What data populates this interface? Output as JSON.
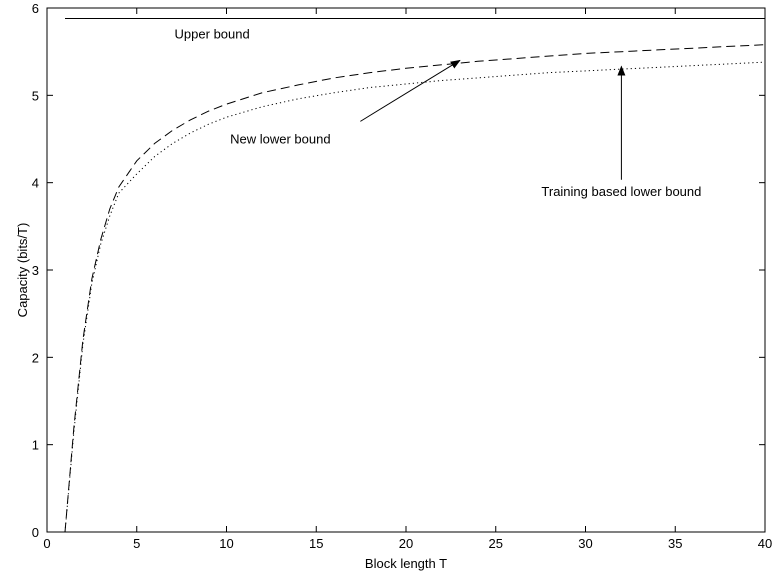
{
  "chart_data": {
    "type": "line",
    "xlabel": "Block length T",
    "ylabel": "Capacity (bits/T)",
    "xlim": [
      0,
      40
    ],
    "ylim": [
      0,
      6
    ],
    "xticks": [
      0,
      5,
      10,
      15,
      20,
      25,
      30,
      35,
      40
    ],
    "yticks": [
      0,
      1,
      2,
      3,
      4,
      5,
      6
    ],
    "grid": false,
    "legend": "none",
    "series": [
      {
        "name": "Upper bound",
        "style": "solid",
        "x": [
          1,
          40
        ],
        "y": [
          5.88,
          5.88
        ]
      },
      {
        "name": "New lower bound",
        "style": "dashed",
        "x": [
          1,
          1.5,
          2,
          2.5,
          3,
          3.5,
          4,
          5,
          6,
          7,
          8,
          9,
          10,
          12,
          14,
          16,
          18,
          20,
          22,
          24,
          26,
          28,
          30,
          32,
          34,
          36,
          38,
          40
        ],
        "y": [
          0,
          1.2,
          2.2,
          2.9,
          3.35,
          3.7,
          3.95,
          4.25,
          4.45,
          4.6,
          4.72,
          4.82,
          4.9,
          5.03,
          5.12,
          5.2,
          5.26,
          5.31,
          5.35,
          5.39,
          5.42,
          5.45,
          5.48,
          5.5,
          5.52,
          5.54,
          5.56,
          5.58
        ]
      },
      {
        "name": "Training based lower bound",
        "style": "dotted",
        "x": [
          1,
          1.5,
          2,
          2.5,
          3,
          3.5,
          4,
          5,
          6,
          7,
          8,
          9,
          10,
          12,
          14,
          16,
          18,
          20,
          22,
          24,
          26,
          28,
          30,
          32,
          34,
          36,
          38,
          40
        ],
        "y": [
          0,
          1.15,
          2.15,
          2.85,
          3.3,
          3.62,
          3.88,
          4.1,
          4.3,
          4.45,
          4.57,
          4.67,
          4.75,
          4.87,
          4.96,
          5.03,
          5.09,
          5.13,
          5.17,
          5.2,
          5.23,
          5.26,
          5.28,
          5.3,
          5.32,
          5.34,
          5.36,
          5.38
        ]
      }
    ],
    "annotations": [
      {
        "text": "Upper bound",
        "x": 9.2,
        "y": 5.65
      },
      {
        "text": "New lower bound",
        "x": 13,
        "y": 4.45,
        "arrow_to": [
          23,
          5.4
        ]
      },
      {
        "text": "Training based lower bound",
        "x": 32,
        "y": 3.85,
        "arrow_to": [
          32,
          5.33
        ]
      }
    ]
  }
}
